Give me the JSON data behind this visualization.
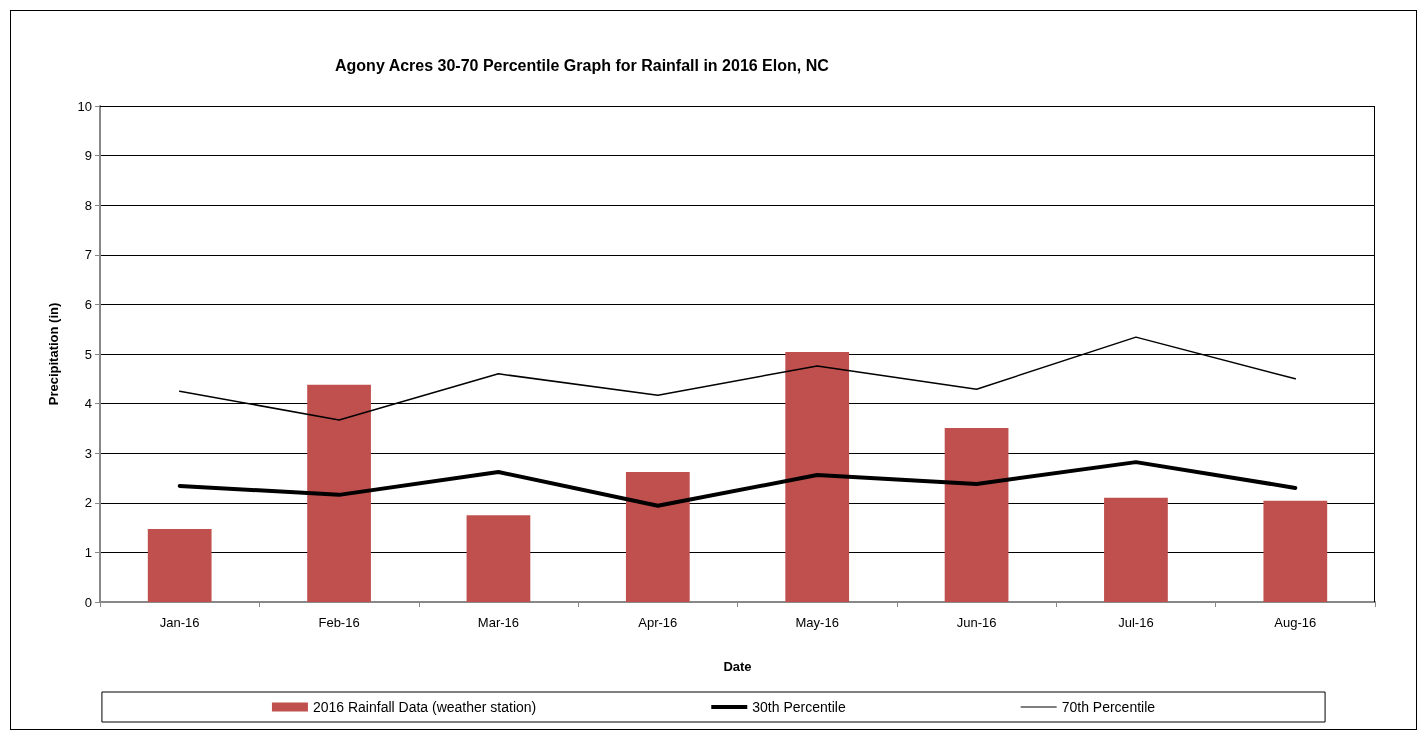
{
  "chart_data": {
    "type": "bar",
    "title": "Agony Acres 30-70 Percentile Graph for Rainfall in 2016 Elon, NC",
    "xlabel": "Date",
    "ylabel": "Precipitation (in)",
    "categories": [
      "Jan-16",
      "Feb-16",
      "Mar-16",
      "Apr-16",
      "May-16",
      "Jun-16",
      "Jul-16",
      "Aug-16"
    ],
    "series": [
      {
        "name": "2016 Rainfall Data (weather station)",
        "color": "#c0504d",
        "values": [
          1.47,
          4.38,
          1.75,
          2.62,
          5.04,
          3.51,
          2.1,
          2.04
        ]
      },
      {
        "name": "30th Percentile",
        "type": "line",
        "color": "#000000",
        "values": [
          2.34,
          2.16,
          2.62,
          1.94,
          2.56,
          2.38,
          2.82,
          2.3
        ]
      },
      {
        "name": "70th Percentile",
        "type": "line",
        "color": "#000000",
        "values": [
          4.25,
          3.67,
          4.6,
          4.17,
          4.76,
          4.29,
          5.34,
          4.5
        ]
      }
    ],
    "ylim": [
      0,
      10
    ],
    "yticks": [
      0,
      1,
      2,
      3,
      4,
      5,
      6,
      7,
      8,
      9,
      10
    ],
    "grid": "y",
    "legend": "bottom",
    "marker": "none",
    "line_style": "solid"
  }
}
